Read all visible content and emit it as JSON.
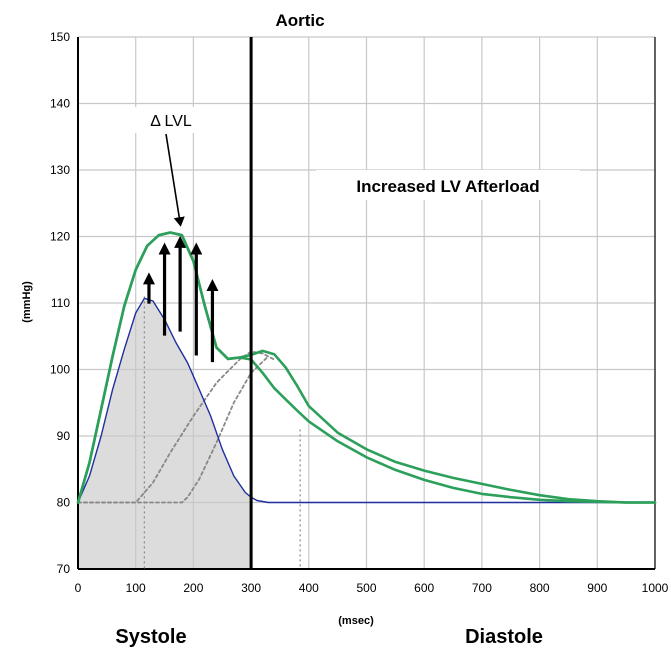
{
  "chart_data": {
    "type": "line",
    "title": "Aortic",
    "xlabel": "(msec)",
    "ylabel": "(mmHg)",
    "xlim": [
      0,
      1000
    ],
    "ylim": [
      70,
      150
    ],
    "xticks": [
      0,
      100,
      200,
      300,
      400,
      500,
      600,
      700,
      800,
      900,
      1000
    ],
    "yticks": [
      70,
      80,
      90,
      100,
      110,
      120,
      130,
      140,
      150
    ],
    "grid": true,
    "systole_end": 300,
    "phase_labels": [
      "Systole",
      "Diastole"
    ],
    "annotations": [
      "Increased LV Afterload",
      "Δ LVL"
    ],
    "series": [
      {
        "color": "#2ca05a",
        "style": "solid",
        "x": [
          0,
          20,
          40,
          60,
          80,
          100,
          120,
          140,
          160,
          180,
          200,
          220,
          240,
          260,
          280,
          300,
          320,
          340,
          360,
          380,
          400,
          450,
          500,
          550,
          600,
          650,
          700,
          750,
          800,
          850,
          900,
          950,
          1000
        ],
        "y": [
          80,
          86,
          94,
          102,
          109.5,
          115,
          118.6,
          120.2,
          120.6,
          120.2,
          116.3,
          109.5,
          103.3,
          101.6,
          101.8,
          101.5,
          99.5,
          97.2,
          95.5,
          93.8,
          92.2,
          89.2,
          86.8,
          84.9,
          83.4,
          82.2,
          81.3,
          80.8,
          80.4,
          80.2,
          80.1,
          80,
          80
        ]
      },
      {
        "color": "#2ca05a",
        "style": "solid",
        "x": [
          0,
          20,
          40,
          60,
          80,
          100,
          120,
          140,
          160,
          180,
          200,
          220,
          240,
          260,
          280,
          300,
          320,
          340,
          360,
          380,
          400,
          450,
          500,
          550,
          600,
          650,
          700,
          750,
          800,
          850,
          900,
          950,
          1000
        ],
        "y": [
          80,
          86,
          94,
          102,
          109.5,
          115,
          118.6,
          120.2,
          120.6,
          120.2,
          116.3,
          109.5,
          103.3,
          101.6,
          101.8,
          102.2,
          102.8,
          102.3,
          100.3,
          97.5,
          94.5,
          90.5,
          88,
          86.1,
          84.8,
          83.7,
          82.8,
          81.9,
          81.1,
          80.5,
          80.2,
          80,
          80
        ]
      },
      {
        "color": "#1f2f9f",
        "style": "solid",
        "x": [
          0,
          20,
          40,
          60,
          80,
          100,
          115,
          130,
          150,
          170,
          190,
          210,
          230,
          250,
          270,
          290,
          300,
          310,
          330,
          400,
          600,
          800,
          1000
        ],
        "y": [
          80,
          84,
          90,
          97,
          103,
          108.5,
          110.7,
          110.3,
          107.5,
          104,
          101,
          97,
          93,
          88,
          84,
          81.5,
          80.8,
          80.3,
          80,
          80,
          80,
          80,
          80
        ]
      },
      {
        "color": "#888888",
        "style": "dotted",
        "x": [
          0,
          100,
          110,
          130,
          160,
          200,
          240,
          280,
          300,
          320,
          340
        ],
        "y": [
          80,
          80,
          81,
          83,
          87.5,
          93,
          98,
          101.5,
          102.7,
          102.4,
          101.5
        ]
      },
      {
        "color": "#888888",
        "style": "dotted",
        "x": [
          0,
          180,
          190,
          210,
          240,
          270,
          300,
          330
        ],
        "y": [
          80,
          80,
          80.8,
          83.5,
          89,
          95,
          99.5,
          102
        ]
      }
    ],
    "vertical_dotted_x": [
      115,
      385
    ],
    "arrows": [
      {
        "x": 123,
        "y_from": 109.9,
        "y_to": 114.6
      },
      {
        "x": 150,
        "y_from": 105.1,
        "y_to": 119.1
      },
      {
        "x": 177,
        "y_from": 105.7,
        "y_to": 120.1
      },
      {
        "x": 205,
        "y_from": 102.1,
        "y_to": 119.1
      },
      {
        "x": 233,
        "y_from": 101.1,
        "y_to": 113.6
      }
    ]
  }
}
